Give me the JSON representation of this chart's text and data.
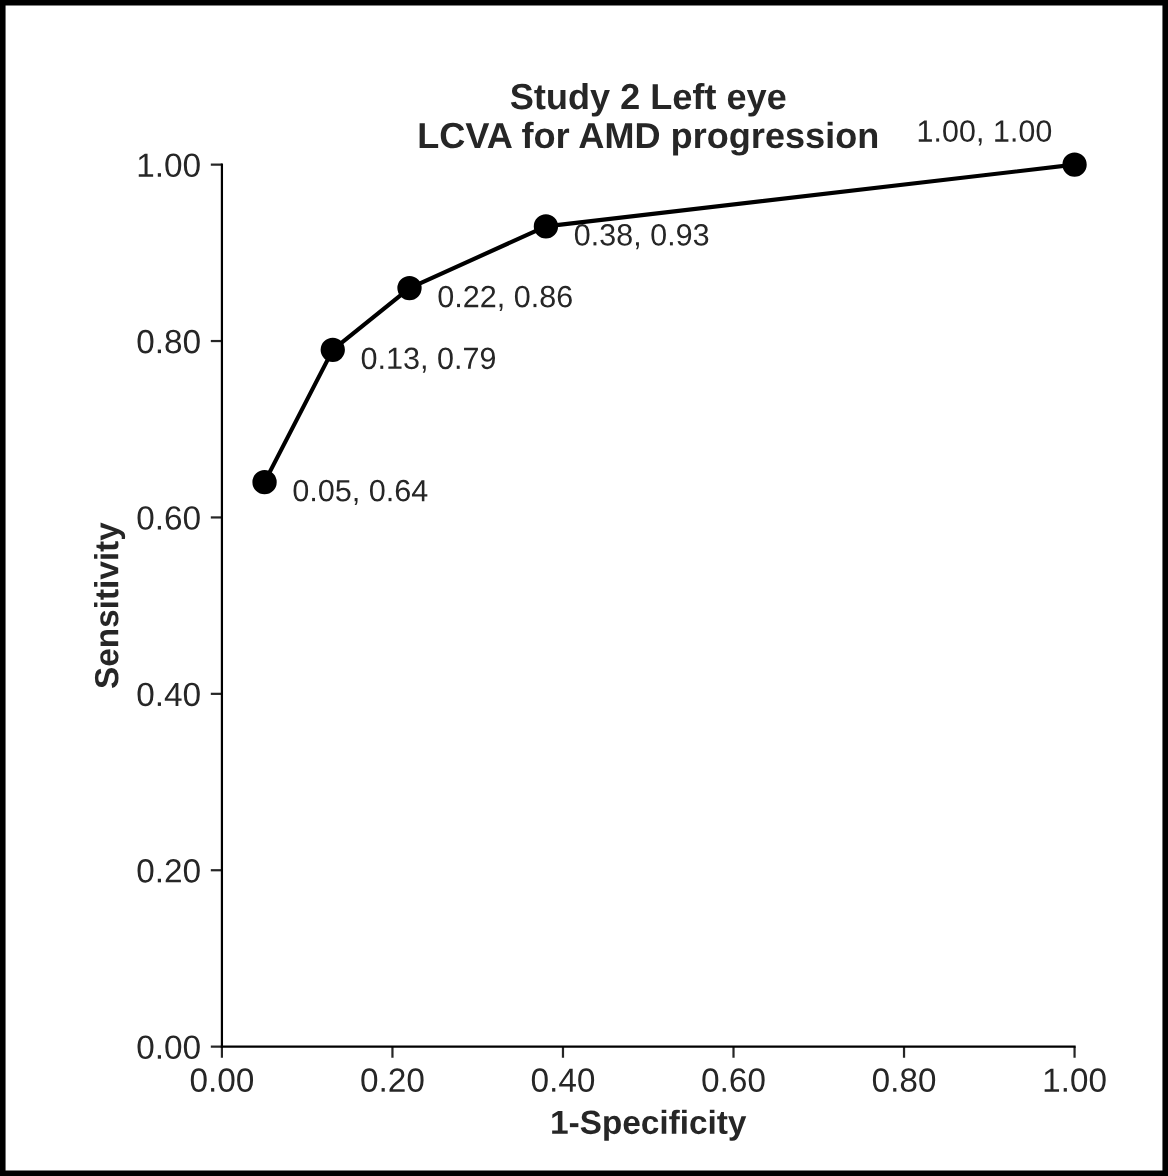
{
  "chart_data": {
    "type": "line",
    "title": "Study 2 Left eye\nLCVA for AMD progression",
    "xlabel": "1-Specificity",
    "ylabel": "Sensitivity",
    "x": [
      0.05,
      0.13,
      0.22,
      0.38,
      1.0
    ],
    "series": [
      {
        "color": "#000000",
        "values": [
          0.64,
          0.79,
          0.86,
          0.93,
          1.0
        ],
        "value_labels": [
          "0.05, 0.64",
          "0.13, 0.79",
          "0.22, 0.86",
          "0.38, 0.93",
          "1.00, 1.00"
        ]
      }
    ],
    "xlim": [
      0,
      1.0
    ],
    "ylim": [
      0,
      1.0
    ],
    "xticks": [
      {
        "value": 0,
        "label": "0.00"
      },
      {
        "value": 0.2,
        "label": "0.20"
      },
      {
        "value": 0.4,
        "label": "0.40"
      },
      {
        "value": 0.6,
        "label": "0.60"
      },
      {
        "value": 0.8,
        "label": "0.80"
      },
      {
        "value": 1.0,
        "label": "1.00"
      }
    ],
    "yticks": [
      {
        "value": 0,
        "label": "0.00"
      },
      {
        "value": 0.2,
        "label": "0.20"
      },
      {
        "value": 0.4,
        "label": "0.40"
      },
      {
        "value": 0.6,
        "label": "0.60"
      },
      {
        "value": 0.8,
        "label": "0.80"
      },
      {
        "value": 1.0,
        "label": "1.00"
      }
    ],
    "grid": false,
    "marker": "circle",
    "line_style": "solid",
    "legend": false
  }
}
